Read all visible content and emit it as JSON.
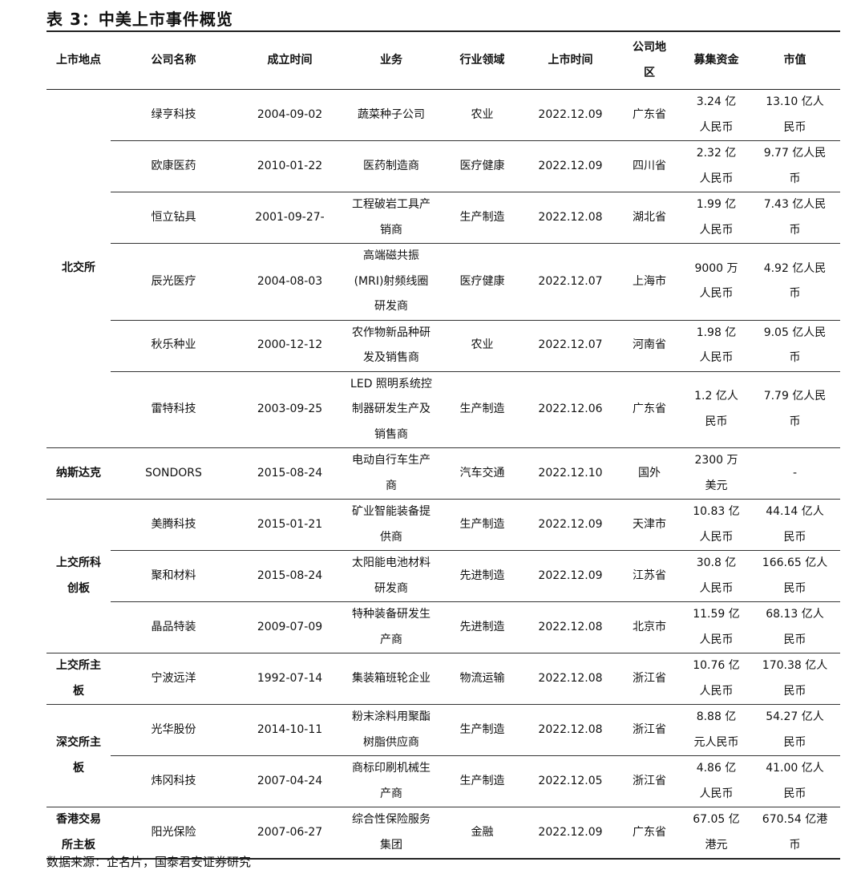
{
  "title": "表 3：中美上市事件概览",
  "headers": [
    "上市地点",
    "公司名称",
    "成立时间",
    "业务",
    "行业领域",
    "上市时间",
    "公司地\n区",
    "募集资金",
    "市值"
  ],
  "groups": [
    {
      "place": "北交所",
      "rows": [
        [
          "绿亨科技",
          "2004-09-02",
          "蔬菜种子公司",
          "农业",
          "2022.12.09",
          "广东省",
          "3.24 亿\n人民币",
          "13.10 亿人\n民币"
        ],
        [
          "欧康医药",
          "2010-01-22",
          "医药制造商",
          "医疗健康",
          "2022.12.09",
          "四川省",
          "2.32 亿\n人民币",
          "9.77 亿人民\n币"
        ],
        [
          "恒立钻具",
          "2001-09-27-",
          "工程破岩工具产\n销商",
          "生产制造",
          "2022.12.08",
          "湖北省",
          "1.99 亿\n人民币",
          "7.43 亿人民\n币"
        ],
        [
          "辰光医疗",
          "2004-08-03",
          "高端磁共振\n(MRI)射频线圈\n研发商",
          "医疗健康",
          "2022.12.07",
          "上海市",
          "9000 万\n人民币",
          "4.92 亿人民\n币"
        ],
        [
          "秋乐种业",
          "2000-12-12",
          "农作物新品种研\n发及销售商",
          "农业",
          "2022.12.07",
          "河南省",
          "1.98 亿\n人民币",
          "9.05 亿人民\n币"
        ],
        [
          "雷特科技",
          "2003-09-25",
          "LED 照明系统控\n制器研发生产及\n销售商",
          "生产制造",
          "2022.12.06",
          "广东省",
          "1.2 亿人\n民币",
          "7.79 亿人民\n币"
        ]
      ]
    },
    {
      "place": "纳斯达克",
      "rows": [
        [
          "SONDORS",
          "2015-08-24",
          "电动自行车生产\n商",
          "汽车交通",
          "2022.12.10",
          "国外",
          "2300 万\n美元",
          "-"
        ]
      ]
    },
    {
      "place": "上交所科\n创板",
      "rows": [
        [
          "美腾科技",
          "2015-01-21",
          "矿业智能装备提\n供商",
          "生产制造",
          "2022.12.09",
          "天津市",
          "10.83 亿\n人民币",
          "44.14 亿人\n民币"
        ],
        [
          "聚和材料",
          "2015-08-24",
          "太阳能电池材料\n研发商",
          "先进制造",
          "2022.12.09",
          "江苏省",
          "30.8 亿\n人民币",
          "166.65 亿人\n民币"
        ],
        [
          "晶品特装",
          "2009-07-09",
          "特种装备研发生\n产商",
          "先进制造",
          "2022.12.08",
          "北京市",
          "11.59 亿\n人民币",
          "68.13 亿人\n民币"
        ]
      ]
    },
    {
      "place": "上交所主\n板",
      "rows": [
        [
          "宁波远洋",
          "1992-07-14",
          "集装箱班轮企业",
          "物流运输",
          "2022.12.08",
          "浙江省",
          "10.76 亿\n人民币",
          "170.38 亿人\n民币"
        ]
      ]
    },
    {
      "place": "深交所主\n板",
      "rows": [
        [
          "光华股份",
          "2014-10-11",
          "粉末涂料用聚酯\n树脂供应商",
          "生产制造",
          "2022.12.08",
          "浙江省",
          "8.88 亿\n元人民币",
          "54.27 亿人\n民币"
        ],
        [
          "炜冈科技",
          "2007-04-24",
          "商标印刷机械生\n产商",
          "生产制造",
          "2022.12.05",
          "浙江省",
          "4.86 亿\n人民币",
          "41.00 亿人\n民币"
        ]
      ]
    },
    {
      "place": "香港交易\n所主板",
      "rows": [
        [
          "阳光保险",
          "2007-06-27",
          "综合性保险服务\n集团",
          "金融",
          "2022.12.09",
          "广东省",
          "67.05 亿\n港元",
          "670.54 亿港\n币"
        ]
      ]
    }
  ],
  "source": "数据来源：企名片，国泰君安证券研究"
}
